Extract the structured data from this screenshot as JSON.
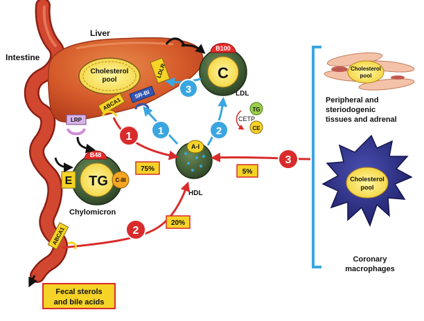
{
  "labels": {
    "intestine": "Intestine",
    "liver": "Liver",
    "chol_pool": [
      "Cholesterol",
      "pool"
    ],
    "ldlr": "LDLR",
    "srbi": "SR-BI",
    "abca1": "ABCA1",
    "lrp": "LRP",
    "b100": "B100",
    "c": "C",
    "ldl": "LDL",
    "tg_small": "TG",
    "ce": "CE",
    "cetp": "CETP",
    "b48": "B48",
    "e": "E",
    "tg": "TG",
    "ciii": "C-III",
    "chylomicron": "Chylomicron",
    "a1": "A-I",
    "hdl": "HDL",
    "peripheral": [
      "Peripheral and",
      "steriodogenic",
      "tissues and adrenal"
    ],
    "coronary": [
      "Coronary",
      "macrophages"
    ],
    "fecal": [
      "Fecal sterols",
      "and bile acids"
    ]
  },
  "pathways": {
    "red": [
      "1",
      "2",
      "3"
    ],
    "blue": [
      "1",
      "2",
      "3"
    ],
    "percent_75": "75%",
    "percent_20": "20%",
    "percent_5": "5%"
  },
  "colors": {
    "liver": "#d9572a",
    "intestine": "#c93a2a",
    "red_arrow": "#d92b2b",
    "blue_arrow": "#3aa6e0",
    "bracket": "#3aa6e0",
    "label_yellow": "#f5d327",
    "b_protein": "#e82a2a",
    "macrophage": "#2d2f8a"
  }
}
